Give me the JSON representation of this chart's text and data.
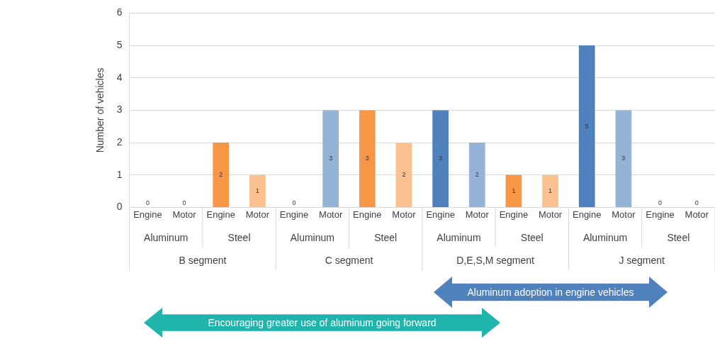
{
  "chart_data": {
    "type": "bar",
    "ylabel": "Number of vehicles",
    "categories": [
      "Engine",
      "Motor",
      "Engine",
      "Motor",
      "Engine",
      "Motor",
      "Engine",
      "Motor",
      "Engine",
      "Motor",
      "Engine",
      "Motor",
      "Engine",
      "Motor",
      "Engine",
      "Motor"
    ],
    "values": [
      0,
      0,
      2,
      1,
      0,
      3,
      3,
      2,
      3,
      2,
      1,
      1,
      5,
      3,
      0,
      0
    ],
    "colors": [
      "#4f81bd",
      "#95b3d7",
      "#f79646",
      "#fac090",
      "#4f81bd",
      "#95b3d7",
      "#f79646",
      "#fac090",
      "#4f81bd",
      "#95b3d7",
      "#f79646",
      "#fac090",
      "#4f81bd",
      "#95b3d7",
      "#f79646",
      "#fac090"
    ],
    "ylim": [
      0,
      6
    ],
    "yticks": [
      0,
      1,
      2,
      3,
      4,
      5,
      6
    ],
    "grid": "y",
    "data_labels": true,
    "legend": false,
    "annotations": [
      "Aluminum",
      "Steel",
      "Aluminum",
      "Steel",
      "Aluminum",
      "Steel",
      "Aluminum",
      "Steel",
      "B segment",
      "C segment",
      "D,E,S,M segment",
      "J segment",
      "Aluminum adoption in engine vehicles",
      "Encouraging greater use of aluminum going forward"
    ]
  }
}
